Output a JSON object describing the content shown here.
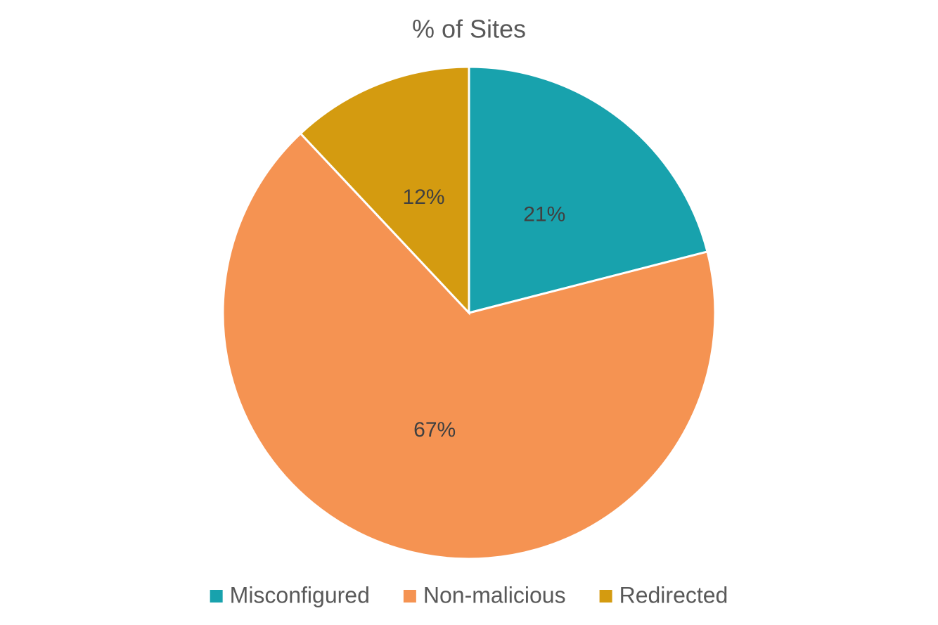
{
  "chart_data": {
    "type": "pie",
    "title": "% of Sites",
    "categories": [
      "Misconfigured",
      "Non-malicious",
      "Redirected"
    ],
    "values": [
      21,
      67,
      12
    ],
    "value_labels": [
      "21%",
      "67%",
      "12%"
    ],
    "colors": [
      "#18a2ad",
      "#f59352",
      "#d49b10"
    ],
    "legend": "bottom"
  }
}
